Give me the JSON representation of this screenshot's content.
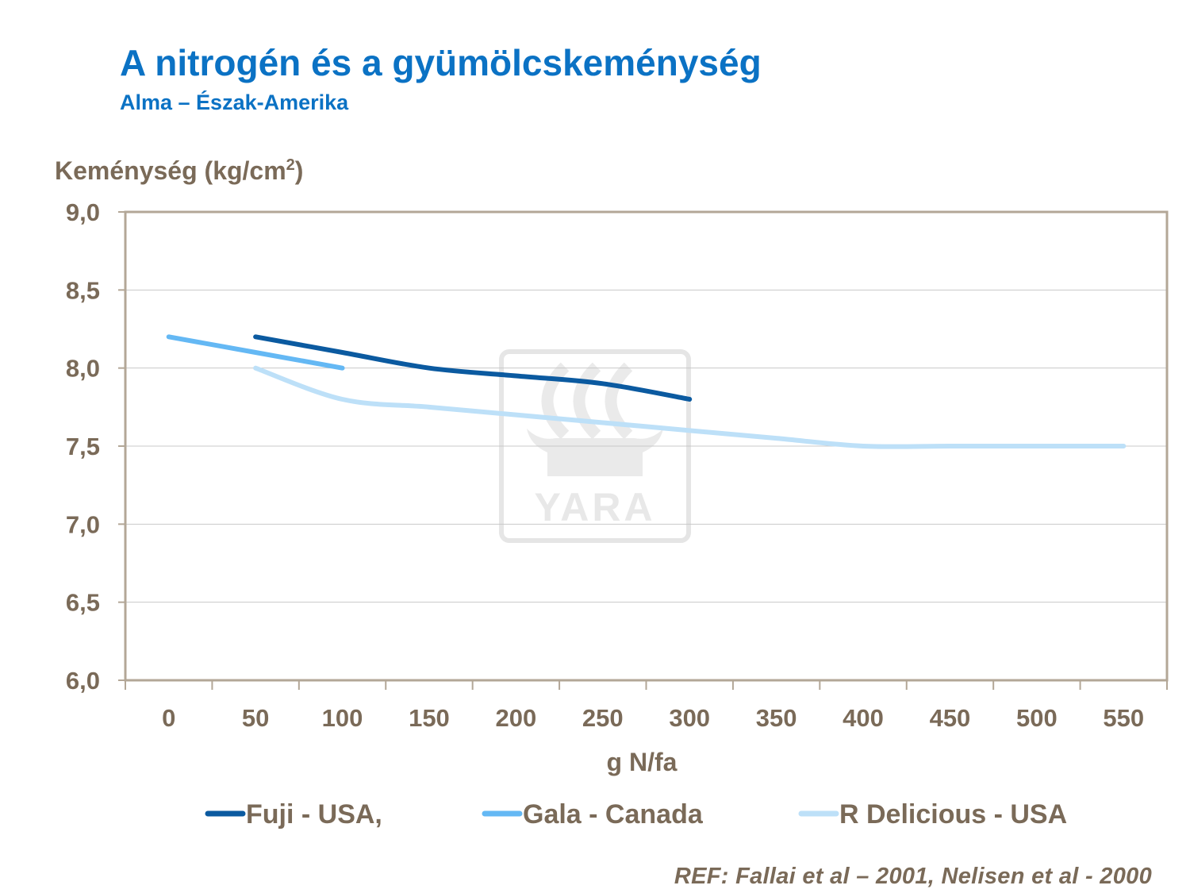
{
  "chart_data": {
    "type": "line",
    "title": "A nitrogén és a gyümölcskeménység",
    "subtitle": "Alma – Észak-Amerika",
    "ylabel_main": "Keménység (kg/cm",
    "ylabel_sup": "2",
    "ylabel_end": ")",
    "xlabel": "g N/fa",
    "ylim": [
      6.0,
      9.0
    ],
    "y_ticks": [
      6.0,
      6.5,
      7.0,
      7.5,
      8.0,
      8.5,
      9.0
    ],
    "y_tick_labels": [
      "6,0",
      "6,5",
      "7,0",
      "7,5",
      "8,0",
      "8,5",
      "9,0"
    ],
    "categories": [
      "0",
      "50",
      "100",
      "150",
      "200",
      "250",
      "300",
      "350",
      "400",
      "450",
      "500",
      "550"
    ],
    "series": [
      {
        "name": "Fuji - USA,",
        "color": "#0b5aa0",
        "x": [
          50,
          100,
          150,
          200,
          250,
          300
        ],
        "values": [
          8.2,
          8.1,
          8.0,
          7.95,
          7.9,
          7.8
        ]
      },
      {
        "name": "Gala - Canada",
        "color": "#64b8f4",
        "x": [
          0,
          50,
          100
        ],
        "values": [
          8.2,
          8.1,
          8.0
        ]
      },
      {
        "name": "R Delicious - USA",
        "color": "#bde0f8",
        "x": [
          50,
          100,
          150,
          200,
          250,
          300,
          350,
          400,
          450,
          500,
          550
        ],
        "values": [
          8.0,
          7.8,
          7.75,
          7.7,
          7.65,
          7.6,
          7.55,
          7.5,
          7.5,
          7.5,
          7.5
        ]
      }
    ],
    "grid": true,
    "legend_position": "bottom"
  },
  "watermark": {
    "text": "YARA"
  },
  "reference": "REF: Fallai et al – 2001, Nelisen et al - 2000"
}
